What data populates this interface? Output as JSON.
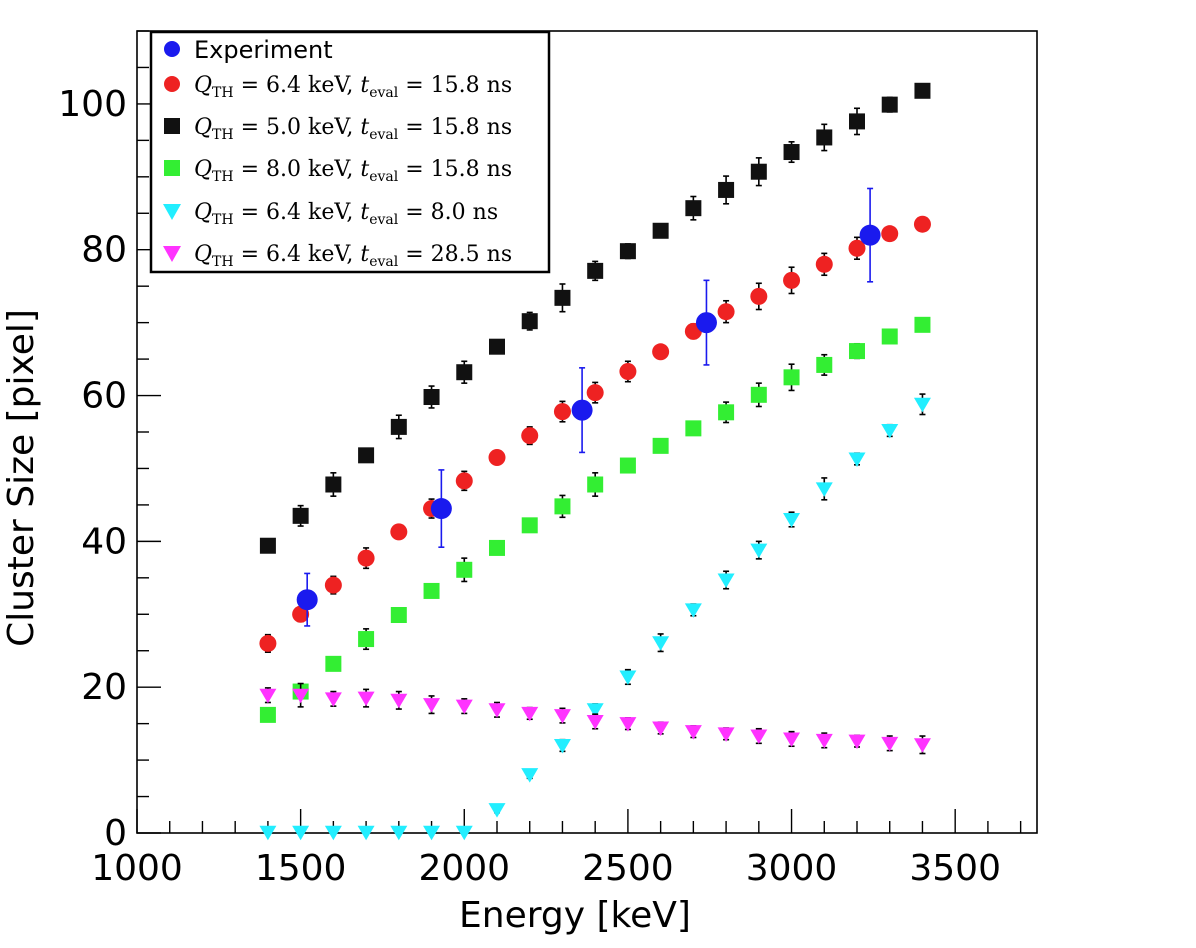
{
  "chart_data": {
    "type": "scatter",
    "title": "",
    "xlabel": "Energy [keV]",
    "ylabel": "Cluster Size [pixel]",
    "xlim": [
      1000,
      3750
    ],
    "ylim": [
      0,
      110
    ],
    "x_ticks": [
      1000,
      1500,
      2000,
      2500,
      3000,
      3500
    ],
    "y_ticks": [
      0,
      20,
      40,
      60,
      80,
      100
    ],
    "legend_position": "top-left",
    "series": [
      {
        "name": "Experiment",
        "label_plain": "Experiment",
        "marker": "circle-large",
        "color": "#1a1aee",
        "x": [
          1520,
          1930,
          2360,
          2740,
          3240
        ],
        "y": [
          32.0,
          44.5,
          58.0,
          70.0,
          82.0
        ],
        "err": [
          3.6,
          5.3,
          5.8,
          5.8,
          6.4
        ]
      },
      {
        "name": "Q_TH = 6.4 keV, t_eval = 15.8 ns",
        "label_plain": "Q_TH = 6.4 keV, t_eval = 15.8 ns",
        "label_parts": {
          "q": "Q",
          "q_sub": "TH",
          "q_val": " = 6.4 keV, ",
          "t": "t",
          "t_sub": "eval",
          "t_val": " = 15.8 ns"
        },
        "marker": "circle",
        "color": "#ee2222",
        "x": [
          1400,
          1500,
          1600,
          1700,
          1800,
          1900,
          2000,
          2100,
          2200,
          2300,
          2400,
          2500,
          2600,
          2700,
          2800,
          2900,
          3000,
          3100,
          3200,
          3300,
          3400
        ],
        "y": [
          26.0,
          30.0,
          34.0,
          37.7,
          41.3,
          44.5,
          48.3,
          51.5,
          54.5,
          57.8,
          60.4,
          63.3,
          66.0,
          68.8,
          71.5,
          73.6,
          75.8,
          78.0,
          80.2,
          82.2,
          83.5
        ],
        "err": [
          1.2,
          1.0,
          1.2,
          1.4,
          0.8,
          1.3,
          1.3,
          0.8,
          1.2,
          1.4,
          1.4,
          1.4,
          0.6,
          1.0,
          1.5,
          1.8,
          1.8,
          1.5,
          1.5,
          0.6,
          0.6
        ]
      },
      {
        "name": "Q_TH = 5.0 keV, t_eval = 15.8 ns",
        "label_plain": "Q_TH = 5.0 keV, t_eval = 15.8 ns",
        "label_parts": {
          "q": "Q",
          "q_sub": "TH",
          "q_val": " = 5.0 keV, ",
          "t": "t",
          "t_sub": "eval",
          "t_val": " = 15.8 ns"
        },
        "marker": "square",
        "color": "#111111",
        "x": [
          1400,
          1500,
          1600,
          1700,
          1800,
          1900,
          2000,
          2100,
          2200,
          2300,
          2400,
          2500,
          2600,
          2700,
          2800,
          2900,
          3000,
          3100,
          3200,
          3300,
          3400
        ],
        "y": [
          39.4,
          43.5,
          47.8,
          51.8,
          55.7,
          59.8,
          63.2,
          66.7,
          70.2,
          73.4,
          77.1,
          79.8,
          82.6,
          85.7,
          88.2,
          90.7,
          93.4,
          95.4,
          97.6,
          99.9,
          101.8
        ],
        "err": [
          0.8,
          1.4,
          1.6,
          0.8,
          1.6,
          1.5,
          1.5,
          0.8,
          1.2,
          1.9,
          1.3,
          1.0,
          0.8,
          1.6,
          1.9,
          1.9,
          1.4,
          1.8,
          1.8,
          1.0,
          0.8
        ]
      },
      {
        "name": "Q_TH = 8.0 keV, t_eval = 15.8 ns",
        "label_plain": "Q_TH = 8.0 keV, t_eval = 15.8 ns",
        "label_parts": {
          "q": "Q",
          "q_sub": "TH",
          "q_val": " = 8.0 keV, ",
          "t": "t",
          "t_sub": "eval",
          "t_val": " = 15.8 ns"
        },
        "marker": "square",
        "color": "#33ee33",
        "x": [
          1400,
          1500,
          1600,
          1700,
          1800,
          1900,
          2000,
          2100,
          2200,
          2300,
          2400,
          2500,
          2600,
          2700,
          2800,
          2900,
          3000,
          3100,
          3200,
          3300,
          3400
        ],
        "y": [
          16.2,
          19.4,
          23.2,
          26.6,
          29.9,
          33.2,
          36.1,
          39.1,
          42.2,
          44.8,
          47.8,
          50.4,
          53.1,
          55.5,
          57.7,
          60.1,
          62.5,
          64.2,
          66.1,
          68.1,
          69.7
        ],
        "err": [
          0.8,
          0.8,
          0.8,
          1.4,
          0.8,
          0.8,
          1.6,
          0.8,
          0.8,
          1.5,
          1.6,
          0.8,
          0.8,
          0.8,
          1.4,
          1.6,
          1.8,
          1.4,
          1.0,
          0.8,
          0.8
        ]
      },
      {
        "name": "Q_TH = 6.4 keV, t_eval = 8.0 ns",
        "label_plain": "Q_TH = 6.4 keV, t_eval = 8.0 ns",
        "label_parts": {
          "q": "Q",
          "q_sub": "TH",
          "q_val": " = 6.4 keV, ",
          "t": "t",
          "t_sub": "eval",
          "t_val": " = 8.0 ns"
        },
        "marker": "triangle-down",
        "color": "#22eeff",
        "x": [
          1400,
          1500,
          1600,
          1700,
          1800,
          1900,
          2000,
          2100,
          2200,
          2300,
          2400,
          2500,
          2600,
          2700,
          2800,
          2900,
          3000,
          3100,
          3200,
          3300,
          3400
        ],
        "y": [
          0.1,
          0.1,
          0.1,
          0.1,
          0.1,
          0.1,
          0.1,
          3.2,
          8.0,
          12.0,
          16.9,
          21.4,
          26.1,
          30.6,
          34.7,
          38.8,
          43.0,
          47.2,
          51.3,
          55.2,
          58.8
        ],
        "err": [
          0.0,
          0.0,
          0.0,
          0.0,
          0.0,
          0.0,
          0.0,
          0.4,
          0.5,
          0.8,
          0.8,
          1.0,
          1.2,
          0.8,
          1.2,
          1.2,
          1.0,
          1.5,
          0.8,
          0.8,
          1.4
        ]
      },
      {
        "name": "Q_TH = 6.4 keV, t_eval = 28.5 ns",
        "label_plain": "Q_TH = 6.4 keV, t_eval = 28.5 ns",
        "label_parts": {
          "q": "Q",
          "q_sub": "TH",
          "q_val": " = 6.4 keV, ",
          "t": "t",
          "t_sub": "eval",
          "t_val": " = 28.5 ns"
        },
        "marker": "triangle-down",
        "color": "#ff33ff",
        "x": [
          1400,
          1500,
          1600,
          1700,
          1800,
          1900,
          2000,
          2100,
          2200,
          2300,
          2400,
          2500,
          2600,
          2700,
          2800,
          2900,
          3000,
          3100,
          3200,
          3300,
          3400
        ],
        "y": [
          18.9,
          18.9,
          18.4,
          18.5,
          18.2,
          17.6,
          17.4,
          16.9,
          16.4,
          16.1,
          15.3,
          15.0,
          14.4,
          13.9,
          13.6,
          13.3,
          12.9,
          12.7,
          12.6,
          12.3,
          12.1
        ],
        "err": [
          1.0,
          1.6,
          1.0,
          1.2,
          1.2,
          1.2,
          1.0,
          1.0,
          0.8,
          1.0,
          1.0,
          0.8,
          0.8,
          0.8,
          0.8,
          1.0,
          1.0,
          1.0,
          0.8,
          1.0,
          1.2
        ]
      }
    ]
  }
}
